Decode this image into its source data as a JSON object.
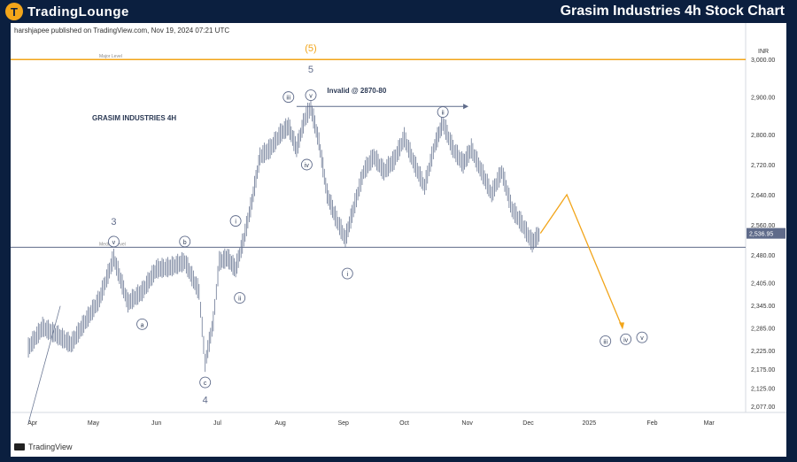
{
  "header": {
    "brand": "TradingLounge",
    "brand_mark": "T",
    "title": "Grasim Industries 4h Stock Chart"
  },
  "publish_note": "harshjapee published on TradingView.com, Nov 19, 2024 07:21 UTC",
  "tradingview_label": "TradingView",
  "colors": {
    "background": "#0b1f3f",
    "accent": "#f2a51a",
    "candle": "#6b7894",
    "wave_label": "#5f6b8a",
    "major_level": "#f2a51a",
    "median_level": "#5f6b8a"
  },
  "chart_data": {
    "type": "line",
    "title": "GRASIM INDUSTRIES 4H",
    "currency": "INR",
    "ylim": [
      2060,
      3050
    ],
    "y_ticks": [
      3000,
      2900,
      2800,
      2720,
      2640,
      2560,
      2480,
      2405,
      2345,
      2285,
      2225,
      2175,
      2125,
      2077
    ],
    "y_tick_labels": [
      "3,000.00",
      "2,900.00",
      "2,800.00",
      "2,720.00",
      "2,640.00",
      "2,560.00",
      "2,480.00",
      "2,405.00",
      "2,345.00",
      "2,285.00",
      "2,225.00",
      "2,175.00",
      "2,125.00",
      "2,077.00"
    ],
    "x_ticks": [
      "Apr",
      "May",
      "Jun",
      "Jul",
      "Aug",
      "Sep",
      "Oct",
      "Nov",
      "Dec",
      "2025",
      "Feb",
      "Mar"
    ],
    "last_price": 2536.95,
    "last_price_label": "2,536.95",
    "levels": [
      {
        "name": "Major Level",
        "value": 3000
      },
      {
        "name": "Median Level",
        "value": 2500
      }
    ],
    "invalidation_label": "Invalid @ 2870-80",
    "series": [
      {
        "values": [
          {
            "x": "2024-04-01",
            "y": 2230
          },
          {
            "x": "2024-04-08",
            "y": 2285
          },
          {
            "x": "2024-04-15",
            "y": 2265
          },
          {
            "x": "2024-04-22",
            "y": 2240
          },
          {
            "x": "2024-04-29",
            "y": 2300
          },
          {
            "x": "2024-05-06",
            "y": 2360
          },
          {
            "x": "2024-05-13",
            "y": 2470
          },
          {
            "x": "2024-05-20",
            "y": 2350
          },
          {
            "x": "2024-05-27",
            "y": 2380
          },
          {
            "x": "2024-06-03",
            "y": 2440
          },
          {
            "x": "2024-06-10",
            "y": 2445
          },
          {
            "x": "2024-06-17",
            "y": 2460
          },
          {
            "x": "2024-06-24",
            "y": 2380
          },
          {
            "x": "2024-06-27",
            "y": 2190
          },
          {
            "x": "2024-07-01",
            "y": 2300
          },
          {
            "x": "2024-07-04",
            "y": 2460
          },
          {
            "x": "2024-07-08",
            "y": 2470
          },
          {
            "x": "2024-07-12",
            "y": 2440
          },
          {
            "x": "2024-07-16",
            "y": 2520
          },
          {
            "x": "2024-07-20",
            "y": 2620
          },
          {
            "x": "2024-07-24",
            "y": 2740
          },
          {
            "x": "2024-07-29",
            "y": 2760
          },
          {
            "x": "2024-08-03",
            "y": 2800
          },
          {
            "x": "2024-08-07",
            "y": 2820
          },
          {
            "x": "2024-08-11",
            "y": 2760
          },
          {
            "x": "2024-08-15",
            "y": 2840
          },
          {
            "x": "2024-08-18",
            "y": 2870
          },
          {
            "x": "2024-08-22",
            "y": 2780
          },
          {
            "x": "2024-08-26",
            "y": 2640
          },
          {
            "x": "2024-08-30",
            "y": 2580
          },
          {
            "x": "2024-09-04",
            "y": 2520
          },
          {
            "x": "2024-09-08",
            "y": 2600
          },
          {
            "x": "2024-09-13",
            "y": 2700
          },
          {
            "x": "2024-09-18",
            "y": 2740
          },
          {
            "x": "2024-09-23",
            "y": 2700
          },
          {
            "x": "2024-09-28",
            "y": 2730
          },
          {
            "x": "2024-10-03",
            "y": 2790
          },
          {
            "x": "2024-10-08",
            "y": 2720
          },
          {
            "x": "2024-10-13",
            "y": 2660
          },
          {
            "x": "2024-10-18",
            "y": 2770
          },
          {
            "x": "2024-10-22",
            "y": 2830
          },
          {
            "x": "2024-10-27",
            "y": 2760
          },
          {
            "x": "2024-11-01",
            "y": 2720
          },
          {
            "x": "2024-11-05",
            "y": 2760
          },
          {
            "x": "2024-11-10",
            "y": 2700
          },
          {
            "x": "2024-11-15",
            "y": 2640
          },
          {
            "x": "2024-11-20",
            "y": 2700
          },
          {
            "x": "2024-11-25",
            "y": 2600
          },
          {
            "x": "2024-11-30",
            "y": 2560
          },
          {
            "x": "2024-12-05",
            "y": 2510
          },
          {
            "x": "2024-12-09",
            "y": 2537
          }
        ]
      }
    ],
    "projection": [
      {
        "x": "2024-12-09",
        "y": 2537
      },
      {
        "x": "2024-12-22",
        "y": 2640
      },
      {
        "x": "2025-01-18",
        "y": 2290
      }
    ],
    "trendline": [
      {
        "x": "2024-04-01",
        "y": 2150
      },
      {
        "x": "2024-04-08",
        "y": 2320
      }
    ],
    "wave_labels": [
      {
        "text": "3",
        "x": "2024-05-13",
        "y": 2560,
        "style": "plain"
      },
      {
        "text": "v",
        "x": "2024-05-13",
        "y": 2515,
        "style": "circle"
      },
      {
        "text": "a",
        "x": "2024-05-27",
        "y": 2295,
        "style": "circle"
      },
      {
        "text": "b",
        "x": "2024-06-17",
        "y": 2515,
        "style": "circle"
      },
      {
        "text": "c",
        "x": "2024-06-27",
        "y": 2140,
        "style": "circle"
      },
      {
        "text": "4",
        "x": "2024-06-27",
        "y": 2085,
        "style": "plain"
      },
      {
        "text": "i",
        "x": "2024-07-12",
        "y": 2570,
        "style": "circle"
      },
      {
        "text": "ii",
        "x": "2024-07-14",
        "y": 2365,
        "style": "circle"
      },
      {
        "text": "iii",
        "x": "2024-08-07",
        "y": 2900,
        "style": "circle"
      },
      {
        "text": "iv",
        "x": "2024-08-16",
        "y": 2720,
        "style": "circle"
      },
      {
        "text": "v",
        "x": "2024-08-18",
        "y": 2905,
        "style": "circle"
      },
      {
        "text": "5",
        "x": "2024-08-18",
        "y": 2965,
        "style": "plain"
      },
      {
        "text": "(5)",
        "x": "2024-08-18",
        "y": 3022,
        "style": "accent"
      },
      {
        "text": "i",
        "x": "2024-09-05",
        "y": 2430,
        "style": "circle"
      },
      {
        "text": "ii",
        "x": "2024-10-22",
        "y": 2860,
        "style": "circle"
      },
      {
        "text": "iii",
        "x": "2025-01-10",
        "y": 2250,
        "style": "circle"
      },
      {
        "text": "iv",
        "x": "2025-01-20",
        "y": 2255,
        "style": "circle"
      },
      {
        "text": "v",
        "x": "2025-01-28",
        "y": 2260,
        "style": "circle"
      }
    ]
  }
}
